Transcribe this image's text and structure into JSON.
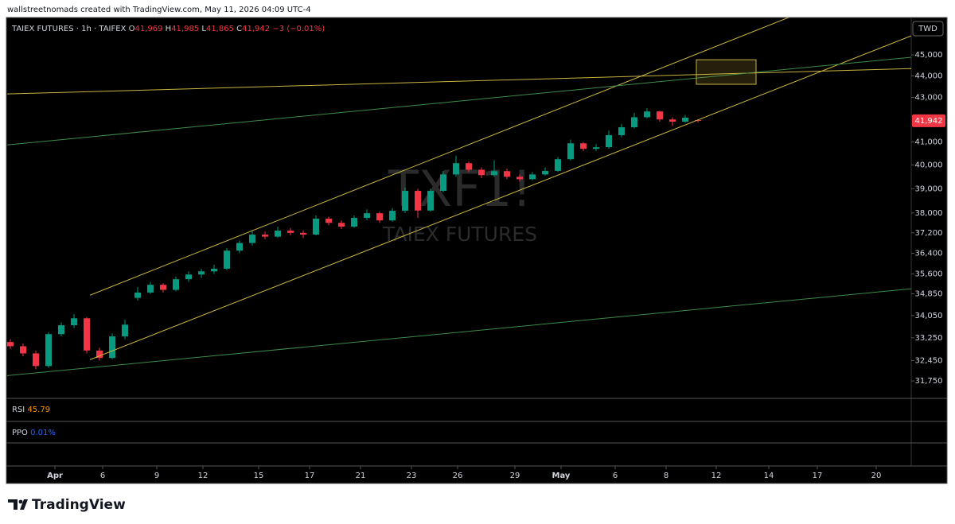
{
  "chart_data": {
    "type": "candlestick",
    "header": {
      "credit": "wallstreetnomads created with TradingView.com, May 11, 2026 04:09 UTC-4",
      "symbol": "TAIEX FUTURES · 1h · TAIFEX",
      "ohlc": [
        {
          "key": "O",
          "value": "41,969"
        },
        {
          "key": "H",
          "value": "41,985"
        },
        {
          "key": "L",
          "value": "41,865"
        },
        {
          "key": "C",
          "value": "41,942"
        }
      ],
      "change": "−3 (−0.01%)"
    },
    "currency": "TWD",
    "watermark": {
      "symbol": "TXF1!",
      "name": "TAIEX FUTURES"
    },
    "indicators": [
      {
        "name": "RSI",
        "value": "45.79",
        "color": "#ff9800"
      },
      {
        "name": "PPO",
        "value": "0.01%",
        "color": "#2962ff"
      }
    ],
    "brand": "TradingView",
    "up_color": "#089981",
    "down_color": "#f23645",
    "log_scale": true,
    "grid": false,
    "xlim": [
      0,
      284
    ],
    "ylim": [
      31190,
      46840
    ],
    "xticks": [
      {
        "value": 15,
        "label": "Apr"
      },
      {
        "value": 30,
        "label": "6"
      },
      {
        "value": 47,
        "label": "9"
      },
      {
        "value": 61.5,
        "label": "12"
      },
      {
        "value": 79,
        "label": "15"
      },
      {
        "value": 95,
        "label": "17"
      },
      {
        "value": 111,
        "label": "21"
      },
      {
        "value": 127,
        "label": "23"
      },
      {
        "value": 141.5,
        "label": "26"
      },
      {
        "value": 159.5,
        "label": "29"
      },
      {
        "value": 174,
        "label": "May"
      },
      {
        "value": 191,
        "label": "6"
      },
      {
        "value": 207,
        "label": "8"
      },
      {
        "value": 222.75,
        "label": "12"
      },
      {
        "value": 239.25,
        "label": "14"
      },
      {
        "value": 254.5,
        "label": "17"
      },
      {
        "value": 273,
        "label": "20"
      }
    ],
    "yticks": [
      {
        "value": 45000,
        "label": "45,000"
      },
      {
        "value": 44000,
        "label": "44,000"
      },
      {
        "value": 43000,
        "label": "43,000"
      },
      {
        "value": 41000,
        "label": "41,000"
      },
      {
        "value": 40000,
        "label": "40,000"
      },
      {
        "value": 39000,
        "label": "39,000"
      },
      {
        "value": 38000,
        "label": "38,000"
      },
      {
        "value": 37200,
        "label": "37,200"
      },
      {
        "value": 36400,
        "label": "36,400"
      },
      {
        "value": 35600,
        "label": "35,600"
      },
      {
        "value": 34850,
        "label": "34,850"
      },
      {
        "value": 34050,
        "label": "34,050"
      },
      {
        "value": 33250,
        "label": "33,250"
      },
      {
        "value": 32450,
        "label": "32,450"
      },
      {
        "value": 31750,
        "label": "31,750"
      }
    ],
    "last_price": {
      "value": 41942,
      "label": "41,942"
    },
    "x": [
      1,
      5,
      9,
      13,
      17,
      21,
      25,
      29,
      33,
      37,
      41,
      45,
      49,
      53,
      57,
      61,
      65,
      69,
      73,
      77,
      81,
      85,
      89,
      93,
      97,
      101,
      105,
      109,
      113,
      117,
      121,
      125,
      129,
      133,
      137,
      141,
      145,
      149,
      153,
      157,
      161,
      165,
      169,
      173,
      177,
      181,
      185,
      189,
      193,
      197,
      201,
      205,
      209,
      213,
      217
    ],
    "open": [
      33100,
      32950,
      32700,
      32260,
      33380,
      33700,
      33950,
      32800,
      32540,
      33300,
      34700,
      34900,
      35190,
      35000,
      35400,
      35580,
      35700,
      35800,
      36500,
      36800,
      37130,
      37050,
      37290,
      37200,
      37130,
      37770,
      37600,
      37450,
      37800,
      37990,
      37700,
      38090,
      38910,
      38100,
      38910,
      39600,
      40080,
      39800,
      39570,
      39740,
      39500,
      39400,
      39600,
      39750,
      40250,
      40940,
      40700,
      40770,
      41300,
      41650,
      42100,
      42360,
      42000,
      41900,
      41969
    ],
    "high": [
      33200,
      33050,
      32800,
      33450,
      33800,
      34100,
      34000,
      32900,
      33400,
      33900,
      35100,
      35300,
      35250,
      35500,
      35700,
      35800,
      35950,
      36600,
      36900,
      37300,
      37250,
      37450,
      37400,
      37300,
      37900,
      37850,
      37700,
      37900,
      38150,
      38050,
      38200,
      39050,
      39000,
      39000,
      39750,
      40400,
      40150,
      39900,
      40200,
      39850,
      39600,
      39700,
      39900,
      40350,
      41100,
      41000,
      40900,
      41500,
      41800,
      42300,
      42500,
      42400,
      42100,
      42200,
      41985
    ],
    "low": [
      32850,
      32600,
      32150,
      32200,
      33300,
      33600,
      32700,
      32450,
      32500,
      33200,
      34600,
      34850,
      34900,
      34950,
      35300,
      35450,
      35600,
      35750,
      36400,
      36700,
      36950,
      37000,
      37100,
      37000,
      37100,
      37500,
      37350,
      37400,
      37700,
      37600,
      37650,
      38000,
      37800,
      38050,
      38850,
      39500,
      39700,
      39450,
      39500,
      39400,
      39300,
      39350,
      39550,
      39700,
      40200,
      40600,
      40600,
      40700,
      41200,
      41600,
      42050,
      41900,
      41700,
      41850,
      41865
    ],
    "close": [
      32950,
      32700,
      32260,
      33380,
      33700,
      33950,
      32800,
      32540,
      33300,
      33720,
      34900,
      35190,
      35000,
      35400,
      35580,
      35700,
      35800,
      36500,
      36800,
      37130,
      37050,
      37290,
      37200,
      37130,
      37770,
      37600,
      37450,
      37800,
      37990,
      37700,
      38090,
      38910,
      38100,
      38910,
      39600,
      40080,
      39800,
      39570,
      39740,
      39500,
      39400,
      39600,
      39750,
      40250,
      40940,
      40700,
      40770,
      41300,
      41650,
      42100,
      42360,
      42000,
      41900,
      42080,
      41942
    ],
    "drawings": [
      {
        "kind": "line",
        "color": "#c8b440",
        "x": [
          26,
          248
        ],
        "y": [
          34800,
          47000
        ]
      },
      {
        "kind": "line",
        "color": "#c8b440",
        "x": [
          26,
          284
        ],
        "y": [
          32480,
          45930
        ]
      },
      {
        "kind": "line",
        "color": "#c8b440",
        "x": [
          0,
          284
        ],
        "y": [
          43160,
          44350
        ]
      },
      {
        "kind": "line",
        "color": "#3e8a4a",
        "x": [
          0,
          284
        ],
        "y": [
          40870,
          44890
        ]
      },
      {
        "kind": "line",
        "color": "#3e8a4a",
        "x": [
          0,
          284
        ],
        "y": [
          31930,
          35040
        ]
      },
      {
        "kind": "rect",
        "color": "#c8b440",
        "x": [
          216.5,
          235.25
        ],
        "y": [
          44770,
          43610
        ]
      }
    ]
  }
}
